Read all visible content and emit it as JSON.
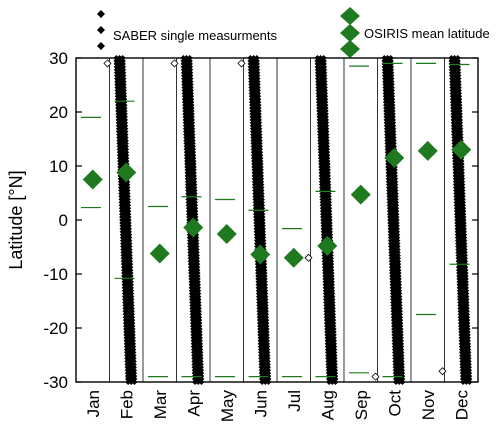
{
  "chart_data": {
    "type": "scatter",
    "title": "",
    "xlabel": "",
    "ylabel": "Latitude [°N]",
    "ylim": [
      -30,
      30
    ],
    "yticks": [
      30,
      20,
      10,
      0,
      -10,
      -20,
      -30
    ],
    "categories": [
      "Jan",
      "Feb",
      "Mar",
      "Apr",
      "May",
      "Jun",
      "Jul",
      "Aug",
      "Sep",
      "Oct",
      "Nov",
      "Dec"
    ],
    "legend": {
      "placement": "top",
      "entries": [
        {
          "label": "SABER single measurments",
          "marker": "small-black-diamond"
        },
        {
          "label": "OSIRIS mean latitude",
          "marker": "large-green-diamond"
        }
      ]
    },
    "series": [
      {
        "name": "OSIRIS mean latitude",
        "color": "#1f7a1f",
        "x": [
          "Jan",
          "Feb",
          "Mar",
          "Apr",
          "May",
          "Jun",
          "Jul",
          "Aug",
          "Sep",
          "Oct",
          "Nov",
          "Dec"
        ],
        "y": [
          7.5,
          8.8,
          -6.2,
          -1.4,
          -2.6,
          -6.4,
          -7.0,
          -4.8,
          4.7,
          11.5,
          12.8,
          13.0
        ]
      },
      {
        "name": "OSIRIS range bounds",
        "color": "#1f7a1f",
        "upper": [
          19.0,
          22.0,
          2.5,
          4.3,
          3.8,
          1.8,
          -1.6,
          5.3,
          28.5,
          29.0,
          29.0,
          28.8
        ],
        "lower": [
          2.3,
          -10.8,
          -29.0,
          -29.0,
          -29.0,
          -29.0,
          -29.0,
          -29.0,
          -28.3,
          -29.0,
          -17.5,
          -8.2
        ]
      },
      {
        "name": "SABER single measurments",
        "color": "#000000",
        "swaths": [
          {
            "month": "Feb",
            "lat_start": 30,
            "lat_end": -30
          },
          {
            "month": "Apr",
            "lat_start": 30,
            "lat_end": -30
          },
          {
            "month": "Jun",
            "lat_start": 30,
            "lat_end": -30
          },
          {
            "month": "Aug",
            "lat_start": 30,
            "lat_end": -30
          },
          {
            "month": "Oct",
            "lat_start": 30,
            "lat_end": -30
          },
          {
            "month": "Dec",
            "lat_start": 30,
            "lat_end": -30
          }
        ],
        "isolated_points": [
          {
            "month": "Feb",
            "lat": 29
          },
          {
            "month": "Apr",
            "lat": 29
          },
          {
            "month": "Jun",
            "lat": 29
          },
          {
            "month": "Aug",
            "lat": -7
          },
          {
            "month": "Oct",
            "lat": -29
          },
          {
            "month": "Dec",
            "lat": -28
          }
        ]
      }
    ],
    "grid": false
  }
}
